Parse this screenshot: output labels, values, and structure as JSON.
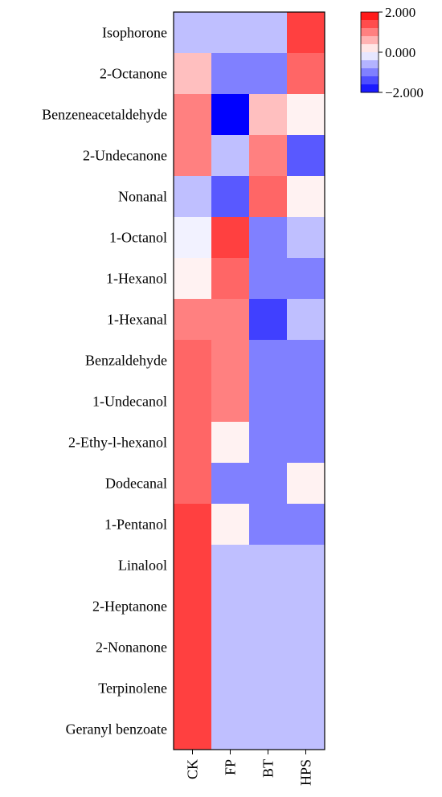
{
  "chart_data": {
    "type": "heatmap",
    "title": "",
    "xlabel": "",
    "ylabel": "",
    "columns": [
      "CK",
      "FP",
      "BT",
      "HPS"
    ],
    "rows": [
      "Isophorone",
      "2-Octanone",
      "Benzeneacetaldehyde",
      "2-Undecanone",
      "Nonanal",
      "1-Octanol",
      "1-Hexanol",
      "1-Hexanal",
      "Benzaldehyde",
      "1-Undecanol",
      "2-Ethy-l-hexanol",
      "Dodecanal",
      "1-Pentanol",
      "Linalool",
      "2-Heptanone",
      "2-Nonanone",
      "Terpinolene",
      "Geranyl benzoate"
    ],
    "values": [
      [
        -0.5,
        -0.5,
        -0.5,
        1.5
      ],
      [
        0.5,
        -1.0,
        -1.0,
        1.2
      ],
      [
        1.0,
        -2.0,
        0.5,
        0.1
      ],
      [
        1.0,
        -0.5,
        1.0,
        -1.3
      ],
      [
        -0.5,
        -1.3,
        1.2,
        0.1
      ],
      [
        -0.1,
        1.5,
        -1.0,
        -0.5
      ],
      [
        0.1,
        1.2,
        -1.0,
        -1.0
      ],
      [
        1.0,
        1.0,
        -1.5,
        -0.5
      ],
      [
        1.2,
        1.0,
        -1.0,
        -1.0
      ],
      [
        1.2,
        1.0,
        -1.0,
        -1.0
      ],
      [
        1.2,
        0.1,
        -1.0,
        -1.0
      ],
      [
        1.2,
        -1.0,
        -1.0,
        0.1
      ],
      [
        1.5,
        0.1,
        -1.0,
        -1.0
      ],
      [
        1.5,
        -0.5,
        -0.5,
        -0.5
      ],
      [
        1.5,
        -0.5,
        -0.5,
        -0.5
      ],
      [
        1.5,
        -0.5,
        -0.5,
        -0.5
      ],
      [
        1.5,
        -0.5,
        -0.5,
        -0.5
      ],
      [
        1.5,
        -0.5,
        -0.5,
        -0.5
      ]
    ],
    "colorbar": {
      "min": -2,
      "max": 2,
      "tick_labels": [
        "2.000",
        "0.000",
        "−2.000"
      ],
      "tick_values": [
        2,
        0,
        -2
      ],
      "steps": [
        1.8,
        1.4,
        1.0,
        0.6,
        0.2,
        -0.2,
        -0.6,
        -1.0,
        -1.4,
        -1.8
      ],
      "low_color": "#0000ff",
      "mid_color": "#ffffff",
      "high_color": "#ff0000"
    },
    "legend_position": "top-right"
  }
}
